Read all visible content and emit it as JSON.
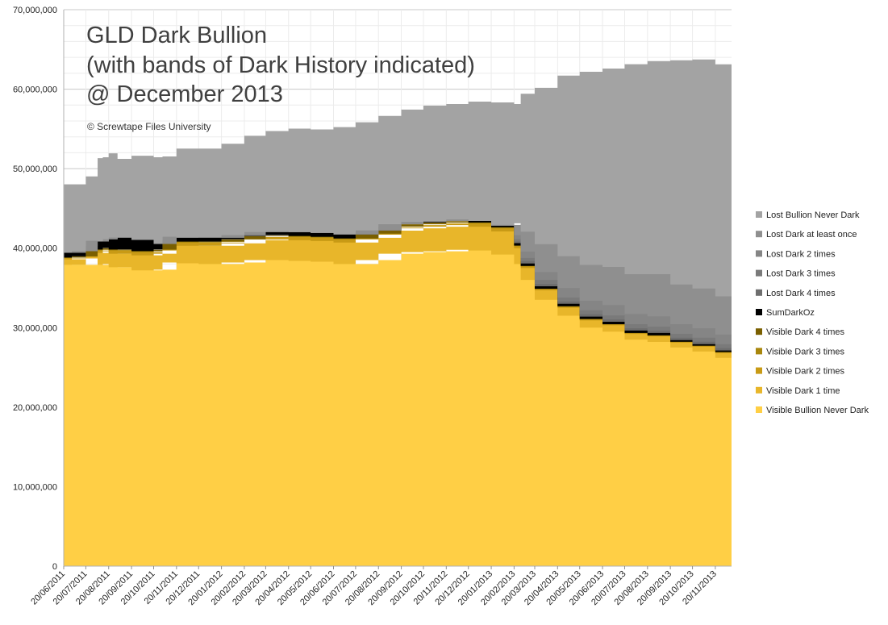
{
  "chart_data": {
    "type": "area",
    "stacked": true,
    "title_lines": [
      "GLD Dark Bullion",
      "(with bands of Dark History indicated)",
      "@ December 2013"
    ],
    "subtitle": "© Screwtape Files University",
    "xlabel": "",
    "ylabel": "",
    "ylim": [
      0,
      70000000
    ],
    "y_ticks": [
      0,
      10000000,
      20000000,
      30000000,
      40000000,
      50000000,
      60000000,
      70000000
    ],
    "y_tick_labels": [
      "0",
      "10,000,000",
      "20,000,000",
      "30,000,000",
      "40,000,000",
      "50,000,000",
      "60,000,000",
      "70,000,000"
    ],
    "grid": true,
    "legend_position": "right",
    "x_tick_labels": [
      "20/06/2011",
      "20/07/2011",
      "20/08/2011",
      "20/09/2011",
      "20/10/2011",
      "20/11/2011",
      "20/12/2011",
      "20/01/2012",
      "20/02/2012",
      "20/03/2012",
      "20/04/2012",
      "20/05/2012",
      "20/06/2012",
      "20/07/2012",
      "20/08/2012",
      "20/09/2012",
      "20/10/2012",
      "20/11/2012",
      "20/12/2012",
      "20/01/2013",
      "20/02/2013",
      "20/03/2013",
      "20/04/2013",
      "20/05/2013",
      "20/06/2013",
      "20/07/2013",
      "20/08/2013",
      "20/09/2013",
      "20/10/2013",
      "20/11/2013"
    ],
    "x": [
      "20/06/2011",
      "01/07/2011",
      "20/07/2011",
      "05/08/2011",
      "12/08/2011",
      "20/08/2011",
      "01/09/2011",
      "20/09/2011",
      "20/10/2011",
      "01/11/2011",
      "20/11/2011",
      "20/12/2011",
      "20/01/2012",
      "20/02/2012",
      "20/03/2012",
      "20/04/2012",
      "20/05/2012",
      "20/06/2012",
      "20/07/2012",
      "20/08/2012",
      "20/09/2012",
      "20/10/2012",
      "20/11/2012",
      "20/12/2012",
      "20/01/2013",
      "20/02/2013",
      "01/03/2013",
      "20/03/2013",
      "20/04/2013",
      "20/05/2013",
      "20/06/2013",
      "20/07/2013",
      "20/08/2013",
      "20/09/2013",
      "20/10/2013",
      "20/11/2013",
      "12/12/2013"
    ],
    "series": [
      {
        "name": "Visible Bullion Never Dark",
        "color": "#FFCF45",
        "values": [
          38000000,
          37900000,
          37900000,
          39000000,
          37900000,
          38000000,
          37600000,
          37600000,
          37200000,
          37300000,
          38200000,
          38100000,
          38000000,
          38200000,
          38500000,
          38500000,
          38400000,
          38300000,
          38000000,
          38500000,
          39300000,
          39500000,
          39600000,
          39800000,
          39700000,
          39200000,
          38000000,
          36000000,
          33500000,
          31500000,
          30000000,
          29500000,
          28500000,
          28200000,
          27500000,
          27000000,
          26200000
        ]
      },
      {
        "name": "Visible Dark 1 time",
        "color": "#E8B62A",
        "values": [
          700000,
          700000,
          800000,
          1000000,
          1500000,
          1600000,
          1700000,
          1700000,
          1900000,
          2000000,
          2200000,
          2200000,
          2300000,
          2400000,
          2500000,
          2600000,
          2600000,
          2600000,
          2700000,
          2800000,
          2900000,
          3000000,
          3100000,
          3100000,
          3000000,
          2900000,
          2000000,
          1500000,
          1200000,
          1000000,
          900000,
          800000,
          700000,
          700000,
          600000,
          600000,
          600000
        ]
      },
      {
        "name": "Visible Dark 2 times",
        "color": "#C89A15",
        "values": [
          150000,
          150000,
          200000,
          200000,
          300000,
          300000,
          400000,
          400000,
          400000,
          400000,
          400000,
          400000,
          400000,
          400000,
          400000,
          400000,
          400000,
          400000,
          400000,
          400000,
          400000,
          400000,
          400000,
          400000,
          400000,
          400000,
          250000,
          200000,
          150000,
          150000,
          150000,
          100000,
          100000,
          100000,
          100000,
          100000,
          100000
        ]
      },
      {
        "name": "Visible Dark 3 times",
        "color": "#A8860C",
        "values": [
          50000,
          50000,
          50000,
          50000,
          100000,
          100000,
          100000,
          100000,
          100000,
          100000,
          100000,
          100000,
          100000,
          100000,
          100000,
          100000,
          100000,
          100000,
          100000,
          100000,
          100000,
          100000,
          100000,
          100000,
          100000,
          100000,
          60000,
          50000,
          40000,
          30000,
          30000,
          30000,
          20000,
          20000,
          20000,
          20000,
          20000
        ]
      },
      {
        "name": "Visible Dark 4 times",
        "color": "#7A5F00",
        "values": [
          20000,
          20000,
          20000,
          20000,
          30000,
          30000,
          30000,
          30000,
          30000,
          30000,
          30000,
          30000,
          30000,
          30000,
          30000,
          30000,
          30000,
          30000,
          30000,
          30000,
          30000,
          30000,
          30000,
          30000,
          30000,
          30000,
          20000,
          20000,
          10000,
          10000,
          10000,
          10000,
          10000,
          10000,
          10000,
          10000,
          10000
        ]
      },
      {
        "name": "SumDarkOz",
        "color": "#000000",
        "values": [
          600000,
          600000,
          650000,
          650000,
          1000000,
          1100000,
          1500000,
          1500000,
          1400000,
          700000,
          500000,
          500000,
          500000,
          500000,
          500000,
          500000,
          500000,
          500000,
          500000,
          400000,
          300000,
          300000,
          200000,
          200000,
          200000,
          200000,
          300000,
          300000,
          300000,
          300000,
          300000,
          300000,
          300000,
          300000,
          200000,
          200000,
          200000
        ]
      },
      {
        "name": "Lost Dark 4 times",
        "color": "#6E6E6E",
        "values": [
          0,
          0,
          0,
          0,
          0,
          0,
          0,
          0,
          0,
          0,
          0,
          0,
          0,
          0,
          0,
          0,
          0,
          0,
          0,
          0,
          0,
          0,
          0,
          0,
          0,
          0,
          200000,
          300000,
          300000,
          300000,
          300000,
          300000,
          300000,
          300000,
          300000,
          300000,
          300000
        ]
      },
      {
        "name": "Lost Dark 3 times",
        "color": "#7A7A7A",
        "values": [
          0,
          0,
          0,
          0,
          0,
          0,
          0,
          0,
          0,
          0,
          0,
          0,
          0,
          0,
          0,
          0,
          0,
          0,
          0,
          0,
          0,
          0,
          0,
          0,
          0,
          0,
          300000,
          400000,
          500000,
          500000,
          500000,
          500000,
          500000,
          500000,
          500000,
          500000,
          500000
        ]
      },
      {
        "name": "Lost Dark 2 times",
        "color": "#858585",
        "values": [
          0,
          0,
          0,
          0,
          0,
          0,
          0,
          0,
          0,
          0,
          0,
          0,
          0,
          0,
          0,
          0,
          0,
          0,
          0,
          0,
          0,
          0,
          0,
          0,
          0,
          0,
          500000,
          800000,
          1000000,
          1200000,
          1200000,
          1300000,
          1300000,
          1300000,
          1200000,
          1200000,
          1200000
        ]
      },
      {
        "name": "Lost Dark at least once",
        "color": "#8F8F8F",
        "values": [
          0,
          0,
          0,
          0,
          0,
          0,
          0,
          0,
          0,
          0,
          0,
          0,
          0,
          0,
          0,
          0,
          0,
          0,
          0,
          0,
          0,
          0,
          0,
          0,
          0,
          100000,
          1500000,
          2500000,
          3500000,
          4000000,
          4500000,
          4800000,
          5000000,
          5300000,
          5000000,
          5000000,
          4800000
        ]
      },
      {
        "name": "Lost Bullion Never Dark",
        "color": "#A3A3A3",
        "values": [
          8500000,
          8600000,
          9400000,
          10400000,
          10600000,
          10800000,
          9900000,
          10300000,
          10400000,
          11000000,
          11100000,
          11200000,
          11800000,
          12500000,
          12700000,
          12900000,
          12900000,
          13300000,
          14100000,
          14400000,
          14400000,
          14600000,
          14700000,
          14800000,
          14900000,
          15200000,
          16300000,
          18100000,
          21200000,
          23200000,
          24700000,
          25500000,
          26800000,
          26900000,
          28300000,
          28200000,
          27800000
        ]
      }
    ]
  }
}
